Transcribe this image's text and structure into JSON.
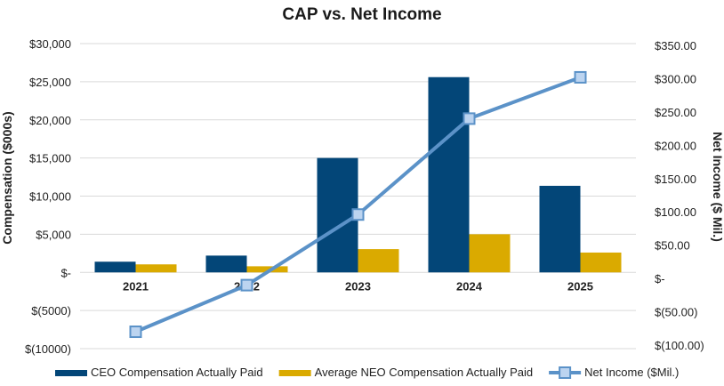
{
  "chart_data": {
    "type": "bar",
    "title": "CAP vs. Net Income",
    "categories": [
      "2021",
      "2022",
      "2023",
      "2024",
      "2025"
    ],
    "ylabel": "Compensation ($000s)",
    "y2label": "Net Income ($ Mil.)",
    "ylim": [
      -10000,
      30000
    ],
    "y2lim": [
      -100,
      350
    ],
    "yticks": [
      30000,
      25000,
      20000,
      15000,
      10000,
      5000,
      0,
      -5000,
      -10000
    ],
    "ytick_labels": [
      "$30,000",
      "$25,000",
      "$20,000",
      "$15,000",
      "$10,000",
      "$5,000",
      "$-",
      "$(5000)",
      "$(10000)"
    ],
    "y2ticks": [
      350,
      300,
      250,
      200,
      150,
      100,
      50,
      0,
      -50,
      -100
    ],
    "y2tick_labels": [
      "$350.00",
      "$300.00",
      "$250.00",
      "$200.00",
      "$150.00",
      "$100.00",
      "$50.00",
      "$-",
      "$(50.00)",
      "$(100.00)"
    ],
    "grid": true,
    "legend_position": "bottom",
    "series": [
      {
        "name": "CEO Compensation Actually Paid",
        "type": "bar",
        "axis": "left",
        "color": "#034678",
        "values": [
          1400,
          2200,
          15000,
          25600,
          11350
        ]
      },
      {
        "name": "Average NEO Compensation Actually Paid",
        "type": "bar",
        "axis": "left",
        "color": "#DAAA00",
        "values": [
          1050,
          800,
          3050,
          5000,
          2600
        ]
      },
      {
        "name": "Net Income ($Mil.)",
        "type": "line",
        "axis": "right",
        "color": "#5B92C8",
        "marker_fill": "#BCD4F0",
        "values": [
          -80,
          -10,
          96,
          240,
          302
        ]
      }
    ]
  }
}
